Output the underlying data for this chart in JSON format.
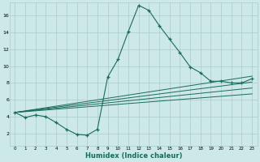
{
  "xlabel": "Humidex (Indice chaleur)",
  "bg_color": "#cce8e8",
  "grid_color": "#aacccc",
  "line_color": "#1a6b5a",
  "xlim": [
    -0.5,
    23.5
  ],
  "ylim": [
    0.5,
    17.5
  ],
  "xticks": [
    0,
    1,
    2,
    3,
    4,
    5,
    6,
    7,
    8,
    9,
    10,
    11,
    12,
    13,
    14,
    15,
    16,
    17,
    18,
    19,
    20,
    21,
    22,
    23
  ],
  "yticks": [
    2,
    4,
    6,
    8,
    10,
    12,
    14,
    16
  ],
  "main_curve_x": [
    0,
    1,
    2,
    3,
    4,
    5,
    6,
    7,
    8,
    9,
    10,
    11,
    12,
    13,
    14,
    15,
    16,
    17,
    18,
    19,
    20,
    21,
    22,
    23
  ],
  "main_curve_y": [
    4.5,
    3.9,
    4.2,
    4.0,
    3.3,
    2.5,
    1.9,
    1.8,
    2.5,
    8.7,
    10.8,
    14.1,
    17.2,
    16.6,
    14.8,
    13.2,
    11.6,
    9.9,
    9.2,
    8.2,
    8.2,
    8.0,
    8.0,
    8.5
  ],
  "line2_x": [
    0,
    23
  ],
  "line2_y": [
    4.5,
    8.8
  ],
  "line3_x": [
    0,
    23
  ],
  "line3_y": [
    4.5,
    8.1
  ],
  "line4_x": [
    0,
    23
  ],
  "line4_y": [
    4.5,
    7.4
  ],
  "line5_x": [
    0,
    23
  ],
  "line5_y": [
    4.5,
    6.7
  ]
}
